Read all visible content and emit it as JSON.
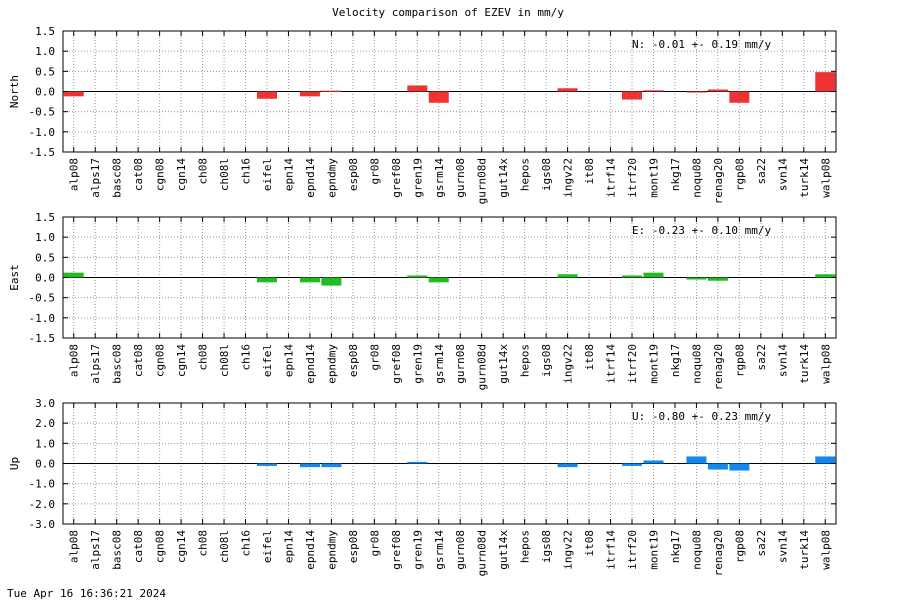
{
  "footer": {
    "timestamp": "Tue Apr 16 16:36:21 2024"
  },
  "chart_data": {
    "type": "bar",
    "title": "Velocity comparison of EZEV in mm/y",
    "categories": [
      "alp08",
      "alps17",
      "basc08",
      "cat08",
      "cgn08",
      "cgn14",
      "ch08",
      "ch08l",
      "ch16",
      "eifel",
      "epn14",
      "epnd14",
      "epndmy",
      "esp08",
      "gr08",
      "gref08",
      "gren19",
      "gsrm14",
      "gurn08",
      "gurn08d",
      "gut14x",
      "hepos",
      "igs08",
      "ingv22",
      "it08",
      "itrf14",
      "itrf20",
      "mont19",
      "nkg17",
      "noqu08",
      "renag20",
      "rgp08",
      "sa22",
      "svn14",
      "turk14",
      "walp08"
    ],
    "grid": true,
    "panels": [
      {
        "ylabel": "North",
        "color": "#ee3333",
        "ylim": [
          -1.5,
          1.5
        ],
        "yticks": [
          "-1.5",
          "-1.0",
          "-0.5",
          "0.0",
          "0.5",
          "1.0",
          "1.5"
        ],
        "annotation": "N:  -0.01 +-  0.19 mm/y",
        "values": [
          -0.12,
          0,
          0,
          0,
          0,
          0,
          0,
          0,
          0,
          -0.18,
          0,
          -0.12,
          0.02,
          0,
          0,
          0,
          0.15,
          -0.28,
          0,
          0,
          0,
          0,
          0,
          0.08,
          0,
          0,
          -0.2,
          0.03,
          0,
          -0.02,
          0.05,
          -0.28,
          0,
          0,
          0,
          0.48
        ]
      },
      {
        "ylabel": "East",
        "color": "#22bb22",
        "ylim": [
          -1.5,
          1.5
        ],
        "yticks": [
          "-1.5",
          "-1.0",
          "-0.5",
          "0.0",
          "0.5",
          "1.0",
          "1.5"
        ],
        "annotation": "E:  -0.23 +-  0.10 mm/y",
        "values": [
          0.12,
          0,
          0,
          0,
          0,
          0,
          0,
          0,
          0,
          -0.12,
          0,
          -0.12,
          -0.2,
          0,
          0,
          0,
          0.05,
          -0.12,
          0,
          0,
          0,
          0,
          0,
          0.08,
          0,
          0,
          0.05,
          0.12,
          0,
          -0.05,
          -0.08,
          0,
          0,
          0,
          0,
          0.08
        ]
      },
      {
        "ylabel": "Up",
        "color": "#1188ee",
        "ylim": [
          -3.0,
          3.0
        ],
        "yticks": [
          "-3.0",
          "-2.0",
          "-1.0",
          "0.0",
          "1.0",
          "2.0",
          "3.0"
        ],
        "annotation": "U:  -0.80 +-  0.23 mm/y",
        "values": [
          0,
          0,
          0,
          0,
          0,
          0,
          0,
          0,
          0,
          -0.12,
          0,
          -0.18,
          -0.18,
          0,
          0,
          0,
          0.08,
          0,
          0,
          0,
          0,
          0,
          0,
          -0.18,
          0,
          0,
          -0.12,
          0.15,
          0,
          0.35,
          -0.3,
          -0.35,
          0,
          0,
          0,
          0.35
        ]
      }
    ]
  }
}
